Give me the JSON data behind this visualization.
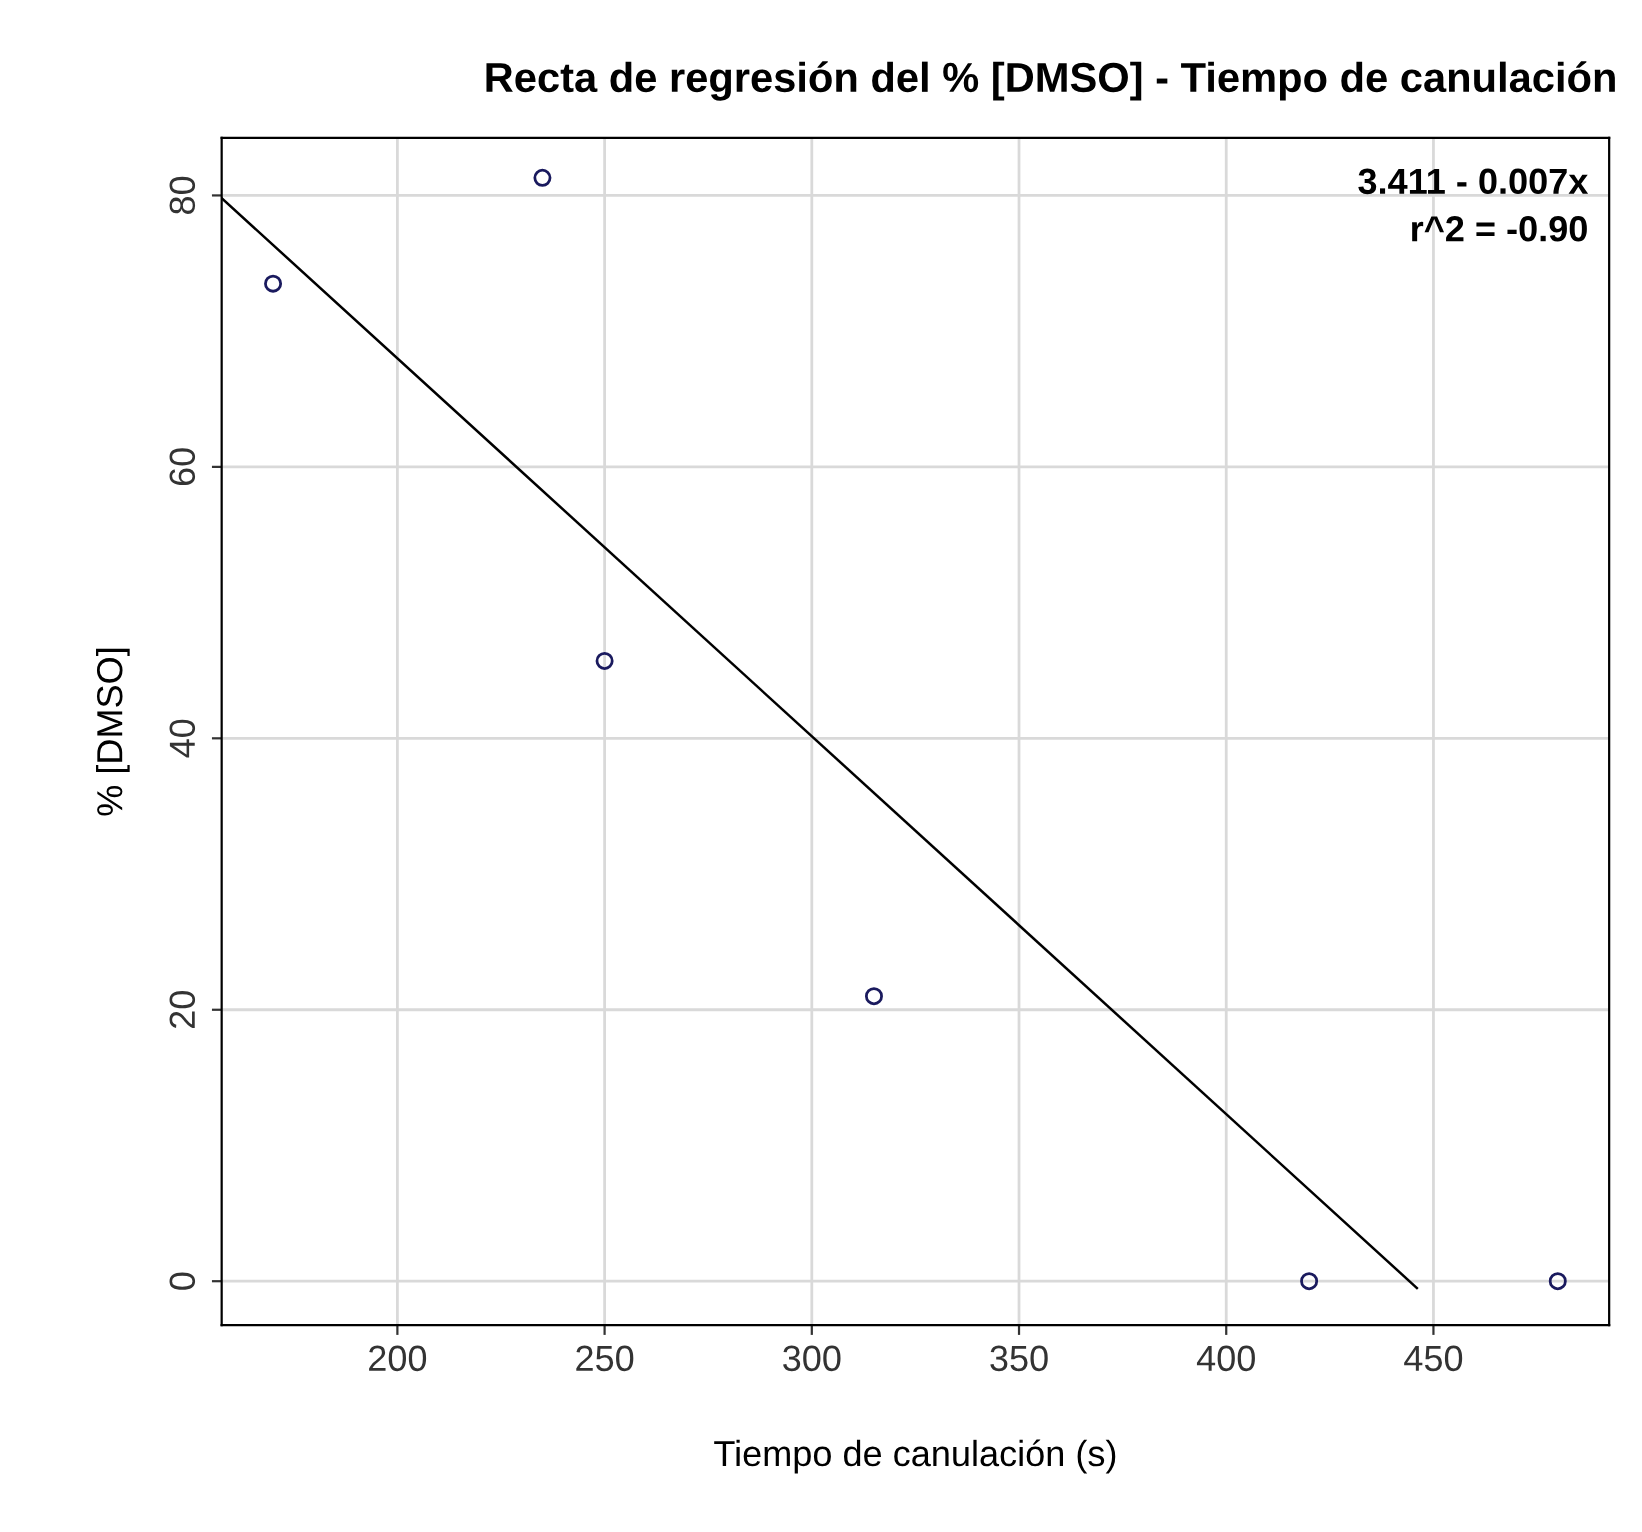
{
  "chart_data": {
    "type": "scatter",
    "title": "Recta de regresión del % [DMSO] - Tiempo de canulación",
    "xlabel": "Tiempo de canulación (s)",
    "ylabel": "% [DMSO]",
    "series": [
      {
        "color": "#1a1a5e",
        "marker": "circle",
        "x": [
          170,
          235,
          250,
          315,
          420,
          480
        ],
        "values": [
          73.5,
          81.3,
          45.7,
          21,
          0,
          0
        ]
      },
      {
        "type": "line",
        "color": "#000000",
        "marker": "none",
        "line_style": "solid",
        "x": [
          157.6,
          446
        ],
        "values": [
          79.8,
          -0.5
        ]
      }
    ],
    "annotations": [
      "3.411 - 0.007x",
      "r^2 = -0.90"
    ],
    "xlim": [
      157.6,
      492.4
    ],
    "ylim": [
      -3.24,
      84.24
    ],
    "xticks": [
      200,
      250,
      300,
      350,
      400,
      450
    ],
    "yticks": [
      0,
      20,
      40,
      60,
      80
    ],
    "grid": true,
    "legend": false
  }
}
